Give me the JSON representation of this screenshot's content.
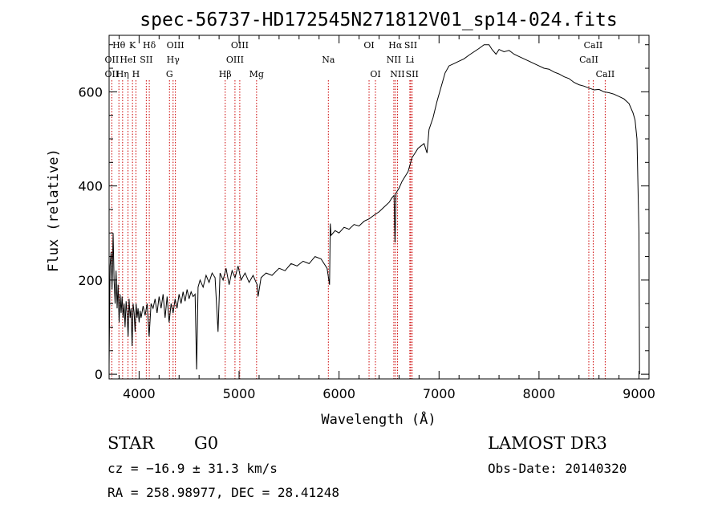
{
  "chart_data": {
    "type": "line",
    "title": "spec-56737-HD172545N271812V01_sp14-024.fits",
    "xlabel": "Wavelength (Å)",
    "ylabel": "Flux (relative)",
    "xlim": [
      3700,
      9100
    ],
    "ylim": [
      -10,
      720
    ],
    "x_ticks": [
      4000,
      5000,
      6000,
      7000,
      8000,
      9000
    ],
    "y_ticks": [
      0,
      200,
      400,
      600
    ],
    "grid": false,
    "series": [
      {
        "name": "flux",
        "points": [
          [
            3700,
            20
          ],
          [
            3710,
            230
          ],
          [
            3720,
            260
          ],
          [
            3730,
            180
          ],
          [
            3740,
            300
          ],
          [
            3750,
            200
          ],
          [
            3760,
            150
          ],
          [
            3770,
            220
          ],
          [
            3780,
            140
          ],
          [
            3790,
            190
          ],
          [
            3800,
            110
          ],
          [
            3810,
            170
          ],
          [
            3820,
            130
          ],
          [
            3830,
            165
          ],
          [
            3840,
            120
          ],
          [
            3850,
            150
          ],
          [
            3860,
            100
          ],
          [
            3870,
            155
          ],
          [
            3880,
            130
          ],
          [
            3890,
            80
          ],
          [
            3900,
            160
          ],
          [
            3910,
            120
          ],
          [
            3920,
            140
          ],
          [
            3930,
            60
          ],
          [
            3940,
            150
          ],
          [
            3950,
            130
          ],
          [
            3960,
            90
          ],
          [
            3970,
            150
          ],
          [
            3980,
            120
          ],
          [
            3990,
            140
          ],
          [
            4000,
            110
          ],
          [
            4010,
            135
          ],
          [
            4020,
            120
          ],
          [
            4040,
            145
          ],
          [
            4060,
            125
          ],
          [
            4080,
            150
          ],
          [
            4100,
            80
          ],
          [
            4120,
            150
          ],
          [
            4140,
            140
          ],
          [
            4160,
            160
          ],
          [
            4180,
            130
          ],
          [
            4200,
            165
          ],
          [
            4220,
            140
          ],
          [
            4240,
            170
          ],
          [
            4260,
            120
          ],
          [
            4280,
            165
          ],
          [
            4300,
            110
          ],
          [
            4320,
            150
          ],
          [
            4340,
            130
          ],
          [
            4360,
            160
          ],
          [
            4380,
            140
          ],
          [
            4400,
            170
          ],
          [
            4420,
            150
          ],
          [
            4440,
            175
          ],
          [
            4460,
            155
          ],
          [
            4480,
            180
          ],
          [
            4500,
            160
          ],
          [
            4520,
            175
          ],
          [
            4540,
            165
          ],
          [
            4560,
            170
          ],
          [
            4575,
            10
          ],
          [
            4590,
            185
          ],
          [
            4610,
            200
          ],
          [
            4640,
            185
          ],
          [
            4670,
            210
          ],
          [
            4700,
            195
          ],
          [
            4730,
            215
          ],
          [
            4760,
            205
          ],
          [
            4790,
            90
          ],
          [
            4810,
            215
          ],
          [
            4840,
            200
          ],
          [
            4870,
            225
          ],
          [
            4900,
            190
          ],
          [
            4930,
            220
          ],
          [
            4960,
            205
          ],
          [
            4990,
            230
          ],
          [
            5020,
            200
          ],
          [
            5060,
            215
          ],
          [
            5100,
            195
          ],
          [
            5140,
            210
          ],
          [
            5180,
            190
          ],
          [
            5190,
            165
          ],
          [
            5220,
            205
          ],
          [
            5270,
            215
          ],
          [
            5330,
            210
          ],
          [
            5400,
            225
          ],
          [
            5460,
            220
          ],
          [
            5520,
            235
          ],
          [
            5580,
            230
          ],
          [
            5640,
            240
          ],
          [
            5700,
            235
          ],
          [
            5760,
            250
          ],
          [
            5820,
            245
          ],
          [
            5880,
            225
          ],
          [
            5905,
            190
          ],
          [
            5912,
            320
          ],
          [
            5920,
            295
          ],
          [
            5960,
            305
          ],
          [
            6000,
            300
          ],
          [
            6050,
            312
          ],
          [
            6100,
            308
          ],
          [
            6150,
            318
          ],
          [
            6200,
            315
          ],
          [
            6250,
            325
          ],
          [
            6300,
            330
          ],
          [
            6350,
            338
          ],
          [
            6400,
            345
          ],
          [
            6450,
            355
          ],
          [
            6500,
            365
          ],
          [
            6530,
            375
          ],
          [
            6550,
            380
          ],
          [
            6560,
            280
          ],
          [
            6570,
            385
          ],
          [
            6600,
            395
          ],
          [
            6630,
            410
          ],
          [
            6660,
            420
          ],
          [
            6690,
            430
          ],
          [
            6710,
            445
          ],
          [
            6730,
            460
          ],
          [
            6760,
            470
          ],
          [
            6790,
            480
          ],
          [
            6820,
            485
          ],
          [
            6850,
            490
          ],
          [
            6880,
            470
          ],
          [
            6900,
            520
          ],
          [
            6940,
            545
          ],
          [
            6980,
            580
          ],
          [
            7020,
            610
          ],
          [
            7060,
            640
          ],
          [
            7100,
            655
          ],
          [
            7150,
            660
          ],
          [
            7200,
            665
          ],
          [
            7250,
            670
          ],
          [
            7300,
            678
          ],
          [
            7350,
            685
          ],
          [
            7400,
            692
          ],
          [
            7450,
            700
          ],
          [
            7500,
            700
          ],
          [
            7530,
            690
          ],
          [
            7570,
            680
          ],
          [
            7600,
            690
          ],
          [
            7650,
            685
          ],
          [
            7700,
            688
          ],
          [
            7750,
            680
          ],
          [
            7800,
            675
          ],
          [
            7850,
            670
          ],
          [
            7900,
            665
          ],
          [
            7950,
            660
          ],
          [
            8000,
            655
          ],
          [
            8050,
            650
          ],
          [
            8100,
            648
          ],
          [
            8150,
            642
          ],
          [
            8200,
            638
          ],
          [
            8250,
            632
          ],
          [
            8300,
            628
          ],
          [
            8350,
            620
          ],
          [
            8400,
            615
          ],
          [
            8450,
            612
          ],
          [
            8500,
            608
          ],
          [
            8550,
            604
          ],
          [
            8600,
            605
          ],
          [
            8650,
            600
          ],
          [
            8700,
            598
          ],
          [
            8750,
            595
          ],
          [
            8800,
            590
          ],
          [
            8850,
            585
          ],
          [
            8900,
            575
          ],
          [
            8940,
            555
          ],
          [
            8960,
            540
          ],
          [
            8980,
            500
          ],
          [
            9000,
            300
          ],
          [
            9005,
            0
          ]
        ]
      }
    ],
    "line_labels": [
      {
        "label": "Hθ",
        "wavelength": 3798,
        "row": 0
      },
      {
        "label": "Hη",
        "wavelength": 3835,
        "row": 2
      },
      {
        "label": "HeI",
        "wavelength": 3889,
        "row": 1
      },
      {
        "label": "K",
        "wavelength": 3934,
        "row": 0
      },
      {
        "label": "H",
        "wavelength": 3968,
        "row": 2
      },
      {
        "label": "SII",
        "wavelength": 4072,
        "row": 1
      },
      {
        "label": "Hδ",
        "wavelength": 4102,
        "row": 0
      },
      {
        "label": "OIII",
        "wavelength": 4363,
        "row": 0
      },
      {
        "label": "Hγ",
        "wavelength": 4340,
        "row": 1
      },
      {
        "label": "G",
        "wavelength": 4304,
        "row": 2
      },
      {
        "label": "Hβ",
        "wavelength": 4861,
        "row": 2
      },
      {
        "label": "OIII",
        "wavelength": 5007,
        "row": 0
      },
      {
        "label": "OIII",
        "wavelength": 4959,
        "row": 1
      },
      {
        "label": "Mg",
        "wavelength": 5175,
        "row": 2
      },
      {
        "label": "Na",
        "wavelength": 5893,
        "row": 1
      },
      {
        "label": "OI",
        "wavelength": 6300,
        "row": 0
      },
      {
        "label": "OI",
        "wavelength": 6364,
        "row": 2
      },
      {
        "label": "Hα",
        "wavelength": 6563,
        "row": 0
      },
      {
        "label": "SII",
        "wavelength": 6717,
        "row": 0
      },
      {
        "label": "NII",
        "wavelength": 6548,
        "row": 1
      },
      {
        "label": "Li",
        "wavelength": 6708,
        "row": 1
      },
      {
        "label": "NII",
        "wavelength": 6584,
        "row": 2
      },
      {
        "label": "SII",
        "wavelength": 6731,
        "row": 2
      },
      {
        "label": "CaII",
        "wavelength": 8542,
        "row": 0
      },
      {
        "label": "CaII",
        "wavelength": 8498,
        "row": 1
      },
      {
        "label": "CaII",
        "wavelength": 8662,
        "row": 2
      },
      {
        "label": "OII",
        "wavelength": 3727,
        "row": 1
      },
      {
        "label": "OII",
        "wavelength": 3727,
        "row": 2
      }
    ],
    "line_markers": [
      3727,
      3798,
      3835,
      3889,
      3934,
      3968,
      4072,
      4102,
      4304,
      4340,
      4363,
      4861,
      4959,
      5007,
      5175,
      5893,
      6300,
      6364,
      6548,
      6563,
      6584,
      6708,
      6717,
      6731,
      8498,
      8542,
      8662
    ],
    "marker_color": "#cc0000"
  },
  "info": {
    "object_class": "STAR",
    "subclass": "G0",
    "survey": "LAMOST DR3",
    "redshift": "cz = −16.9 ± 31.3 km/s",
    "obs_date": "Obs-Date: 20140320",
    "coords": "RA = 258.98977, DEC =  28.41248"
  }
}
